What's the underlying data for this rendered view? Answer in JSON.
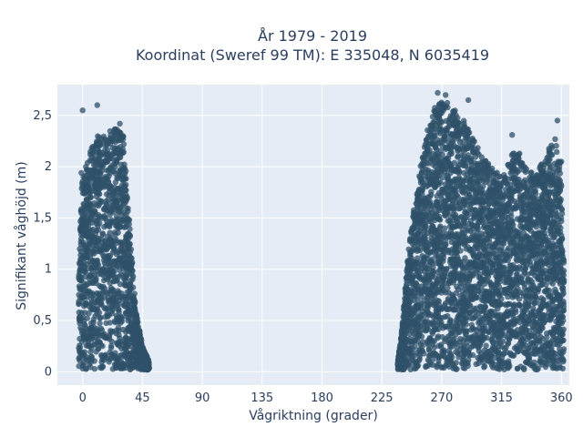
{
  "chart_data": {
    "type": "scatter",
    "title_line1": "År 1979 - 2019",
    "title_line2": "Koordinat (Sweref 99 TM): E 335048, N 6035419",
    "xlabel": "Vågriktning (grader)",
    "ylabel": "Signifikant våghöjd (m)",
    "xlim": [
      -19,
      366
    ],
    "ylim": [
      -0.13,
      2.8
    ],
    "x_ticks": [
      {
        "value": 0,
        "label": "0"
      },
      {
        "value": 45,
        "label": "45"
      },
      {
        "value": 90,
        "label": "90"
      },
      {
        "value": 135,
        "label": "135"
      },
      {
        "value": 180,
        "label": "180"
      },
      {
        "value": 225,
        "label": "225"
      },
      {
        "value": 270,
        "label": "270"
      },
      {
        "value": 315,
        "label": "315"
      },
      {
        "value": 360,
        "label": "360"
      }
    ],
    "y_ticks": [
      {
        "value": 0,
        "label": "0"
      },
      {
        "value": 0.5,
        "label": "0,5"
      },
      {
        "value": 1,
        "label": "1"
      },
      {
        "value": 1.5,
        "label": "1,5"
      },
      {
        "value": 2,
        "label": "2"
      },
      {
        "value": 2.5,
        "label": "2,5"
      }
    ],
    "grid": true,
    "marker_color": "#2f5269",
    "plot_background": "#e5ecf6",
    "clusters": [
      {
        "x_range": [
          -3,
          50
        ],
        "y_max_profile": [
          [
            -3,
            1.3
          ],
          [
            0,
            1.95
          ],
          [
            10,
            2.3
          ],
          [
            20,
            2.35
          ],
          [
            30,
            2.4
          ],
          [
            35,
            1.5
          ],
          [
            40,
            0.6
          ],
          [
            45,
            0.25
          ],
          [
            50,
            0.1
          ]
        ]
      },
      {
        "x_range": [
          237,
          362
        ],
        "y_max_profile": [
          [
            237,
            0.1
          ],
          [
            240,
            0.4
          ],
          [
            245,
            1.2
          ],
          [
            250,
            1.7
          ],
          [
            258,
            2.3
          ],
          [
            265,
            2.6
          ],
          [
            272,
            2.65
          ],
          [
            280,
            2.55
          ],
          [
            290,
            2.4
          ],
          [
            300,
            2.1
          ],
          [
            315,
            1.9
          ],
          [
            325,
            2.2
          ],
          [
            340,
            1.9
          ],
          [
            355,
            2.3
          ],
          [
            360,
            2.0
          ],
          [
            362,
            1.0
          ]
        ]
      }
    ],
    "outliers": [
      {
        "x": 0,
        "y": 2.55
      },
      {
        "x": 11,
        "y": 2.6
      },
      {
        "x": 28,
        "y": 2.42
      },
      {
        "x": 267,
        "y": 2.72
      },
      {
        "x": 273,
        "y": 2.7
      },
      {
        "x": 290,
        "y": 2.65
      },
      {
        "x": 323,
        "y": 2.31
      },
      {
        "x": 357,
        "y": 2.45
      },
      {
        "x": 348,
        "y": 2.05
      },
      {
        "x": 360,
        "y": 2.05
      },
      {
        "x": 3,
        "y": 1.97
      },
      {
        "x": -1,
        "y": 1.94
      }
    ]
  }
}
